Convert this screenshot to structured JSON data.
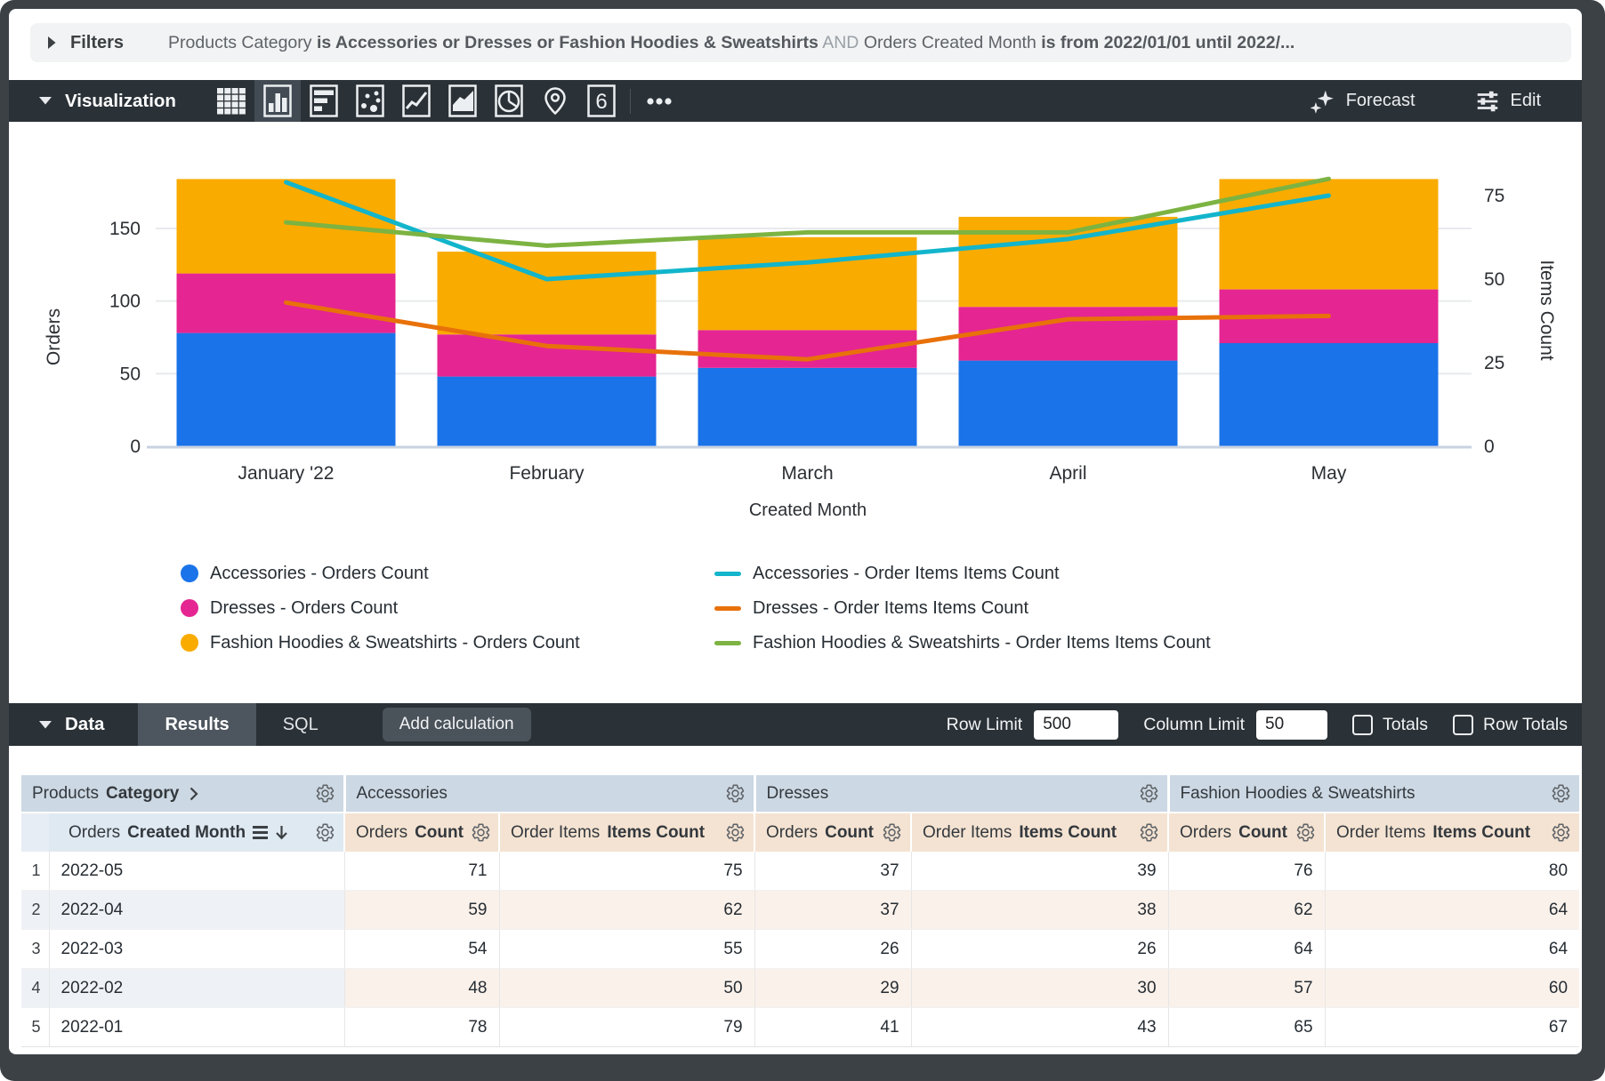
{
  "filters": {
    "label": "Filters",
    "segments": [
      {
        "text": "Products Category ",
        "style": "normal"
      },
      {
        "text": "is Accessories or Dresses or Fashion Hoodies & Sweatshirts",
        "style": "bold"
      },
      {
        "text": " AND ",
        "style": "muted"
      },
      {
        "text": "Orders Created Month ",
        "style": "normal"
      },
      {
        "text": "is from 2022/01/01 until 2022/...",
        "style": "bold"
      }
    ]
  },
  "viz": {
    "label": "Visualization",
    "icons": [
      "table",
      "column",
      "bar",
      "scatter",
      "line",
      "area",
      "pie",
      "map",
      "single-value",
      "more"
    ],
    "selected_icon": "column",
    "single_value_text": "6",
    "forecast_label": "Forecast",
    "edit_label": "Edit"
  },
  "chart_data": {
    "type": "combo-stacked-bar-line",
    "categories": [
      "January '22",
      "February",
      "March",
      "April",
      "May"
    ],
    "x_axis_title": "Created Month",
    "left_axis": {
      "title": "Orders",
      "ticks": [
        0,
        50,
        100,
        150
      ]
    },
    "right_axis": {
      "title": "Items Count",
      "ticks": [
        0,
        25,
        50,
        75
      ]
    },
    "bar_series": [
      {
        "name": "Accessories - Orders Count",
        "color": "#1a73e8",
        "values": [
          78,
          48,
          54,
          59,
          71
        ]
      },
      {
        "name": "Dresses - Orders Count",
        "color": "#e52592",
        "values": [
          41,
          29,
          26,
          37,
          37
        ]
      },
      {
        "name": "Fashion Hoodies & Sweatshirts - Orders Count",
        "color": "#f9ab00",
        "values": [
          65,
          57,
          64,
          62,
          76
        ]
      }
    ],
    "line_series": [
      {
        "name": "Accessories - Order Items Items Count",
        "color": "#12b5cb",
        "values": [
          79,
          50,
          55,
          62,
          75
        ]
      },
      {
        "name": "Dresses - Order Items Items Count",
        "color": "#e8710a",
        "values": [
          43,
          30,
          26,
          38,
          39
        ]
      },
      {
        "name": "Fashion Hoodies & Sweatshirts - Order Items Items Count",
        "color": "#7cb342",
        "values": [
          67,
          60,
          64,
          64,
          80
        ]
      }
    ]
  },
  "data_bar": {
    "label": "Data",
    "tabs": [
      {
        "label": "Results",
        "active": true
      },
      {
        "label": "SQL",
        "active": false
      }
    ],
    "add_calculation_label": "Add calculation",
    "row_limit_label": "Row Limit",
    "row_limit_value": "500",
    "column_limit_label": "Column Limit",
    "column_limit_value": "50",
    "totals_label": "Totals",
    "row_totals_label": "Row Totals"
  },
  "table": {
    "dimension_group_label_parts": [
      {
        "t": "Products "
      },
      {
        "t": "Category",
        "b": true
      }
    ],
    "dimension_col_label_parts": [
      {
        "t": "Orders "
      },
      {
        "t": "Created Month",
        "b": true
      }
    ],
    "groups": [
      {
        "label": "Accessories"
      },
      {
        "label": "Dresses"
      },
      {
        "label": "Fashion Hoodies & Sweatshirts"
      }
    ],
    "measure_cols": [
      {
        "label_parts": [
          {
            "t": "Orders "
          },
          {
            "t": "Count",
            "b": true
          }
        ]
      },
      {
        "label_parts": [
          {
            "t": "Order Items "
          },
          {
            "t": "Items Count",
            "b": true
          }
        ]
      }
    ],
    "rows": [
      {
        "n": "1",
        "dim": "2022-05",
        "vals": [
          71,
          75,
          37,
          39,
          76,
          80
        ]
      },
      {
        "n": "2",
        "dim": "2022-04",
        "vals": [
          59,
          62,
          37,
          38,
          62,
          64
        ]
      },
      {
        "n": "3",
        "dim": "2022-03",
        "vals": [
          54,
          55,
          26,
          26,
          64,
          64
        ]
      },
      {
        "n": "4",
        "dim": "2022-02",
        "vals": [
          48,
          50,
          29,
          30,
          57,
          60
        ]
      },
      {
        "n": "5",
        "dim": "2022-01",
        "vals": [
          78,
          79,
          41,
          43,
          65,
          67
        ]
      }
    ]
  }
}
